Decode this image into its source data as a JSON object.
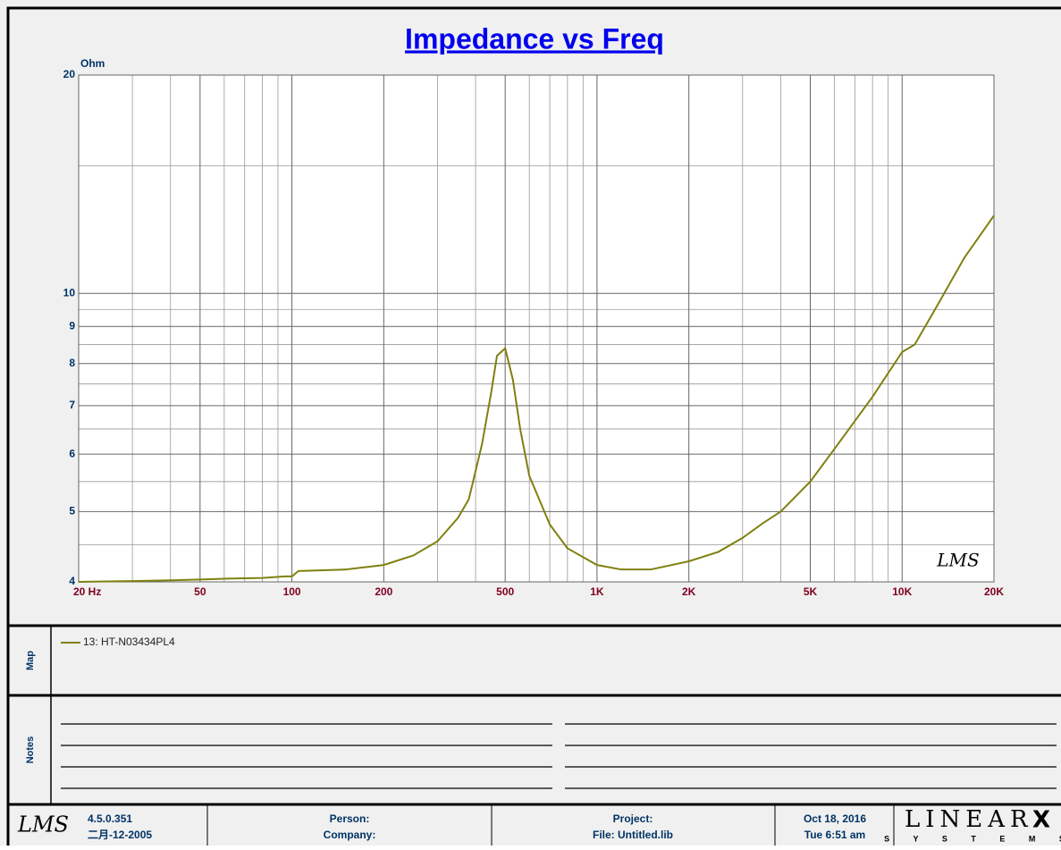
{
  "chart_data": {
    "type": "line",
    "title": "Impedance vs Freq",
    "y_unit": "Ohm",
    "logo": "LMS",
    "log_x": true,
    "log_y": true,
    "grid": true,
    "xlim": [
      20,
      20000
    ],
    "ylim": [
      4,
      20
    ],
    "xticks": [
      {
        "value": 20,
        "label": "20  Hz"
      },
      50,
      100,
      200,
      500,
      {
        "value": 1000,
        "label": "1K"
      },
      {
        "value": 2000,
        "label": "2K"
      },
      {
        "value": 5000,
        "label": "5K"
      },
      {
        "value": 10000,
        "label": "10K"
      },
      {
        "value": 20000,
        "label": "20K"
      }
    ],
    "yticks": [
      4,
      5,
      6,
      7,
      8,
      9,
      10,
      20
    ],
    "xgrid": [
      30,
      40,
      60,
      70,
      80,
      90,
      300,
      400,
      600,
      700,
      800,
      900,
      3000,
      4000,
      6000,
      7000,
      8000,
      9000
    ],
    "ygrid": [
      4.5,
      5.5,
      6.5,
      7.5,
      8.5,
      9.5,
      15
    ],
    "x": [
      20,
      30,
      40,
      50,
      60,
      80,
      95,
      100,
      105,
      150,
      200,
      250,
      300,
      350,
      380,
      420,
      450,
      470,
      500,
      530,
      560,
      600,
      700,
      800,
      1000,
      1200,
      1500,
      2000,
      2500,
      3000,
      3500,
      4000,
      5000,
      6000,
      8000,
      10000,
      11000,
      13000,
      16000,
      20000
    ],
    "series": [
      {
        "name": "13: HT-N03434PL4",
        "color": "#808010",
        "values": [
          4.0,
          4.01,
          4.02,
          4.03,
          4.04,
          4.05,
          4.07,
          4.07,
          4.14,
          4.16,
          4.22,
          4.35,
          4.55,
          4.9,
          5.2,
          6.2,
          7.3,
          8.2,
          8.4,
          7.6,
          6.5,
          5.6,
          4.8,
          4.45,
          4.22,
          4.16,
          4.16,
          4.27,
          4.4,
          4.6,
          4.82,
          5.0,
          5.5,
          6.1,
          7.2,
          8.3,
          8.5,
          9.6,
          11.2,
          12.8
        ]
      }
    ]
  },
  "map_label": "Map",
  "notes_label": "Notes",
  "footer": {
    "logo": "LMS",
    "version": "4.5.0.351",
    "version_date": "二月-12-2005",
    "person": "Person:",
    "company": "Company:",
    "project": "Project:",
    "file": "File: Untitled.lib",
    "date": "Oct 18, 2016",
    "time": "Tue  6:51 am",
    "brand": "LINEAR",
    "brand_x": "X",
    "brand_sub": "S Y S T E M S"
  }
}
